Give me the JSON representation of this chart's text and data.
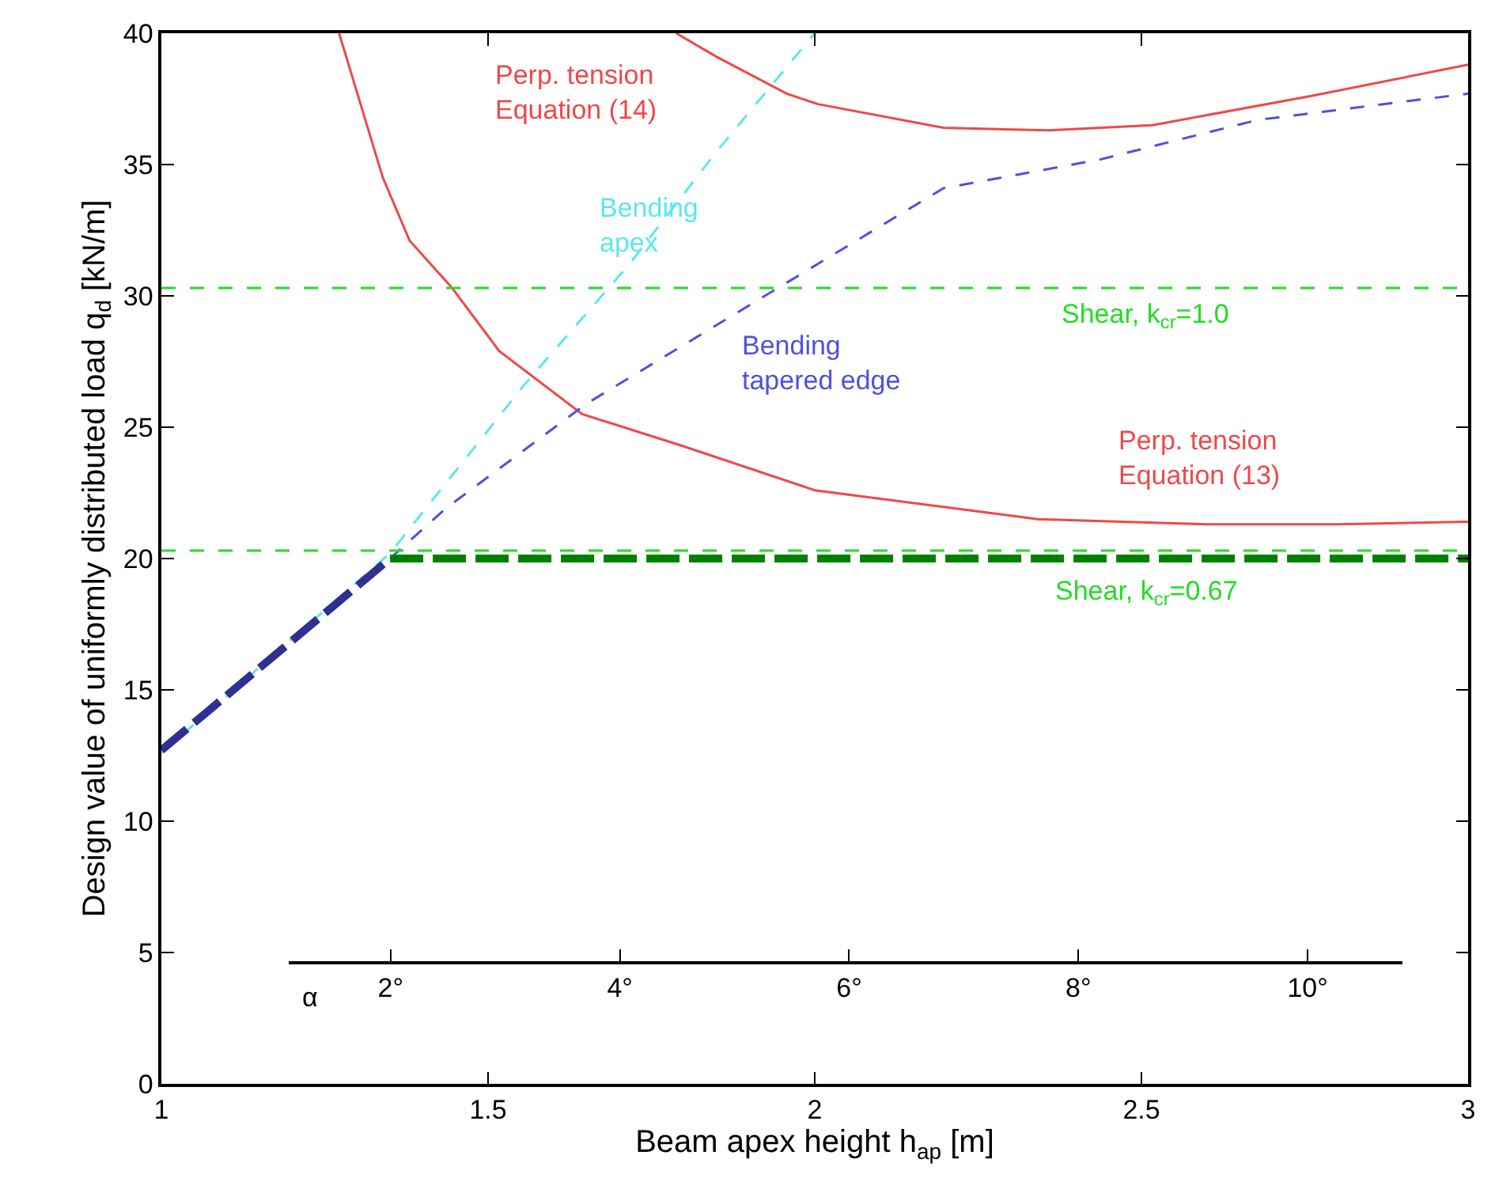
{
  "chart_data": {
    "type": "line",
    "xlabel": "Beam apex height h$_{ap}$ [m]",
    "ylabel": "Design value of uniformly distributed load q$_{d}$ [kN/m]",
    "xlim": [
      1,
      3
    ],
    "xticks": [
      1,
      1.5,
      2,
      2.5,
      3
    ],
    "ylim": [
      0,
      40
    ],
    "yticks": [
      0,
      5,
      10,
      15,
      20,
      25,
      30,
      35,
      40
    ],
    "x2label": "α",
    "x2lim": [
      0,
      11.4
    ],
    "x2ticks": [
      {
        "value": 2,
        "label": "2°"
      },
      {
        "value": 4,
        "label": "4°"
      },
      {
        "value": 6,
        "label": "6°"
      },
      {
        "value": 8,
        "label": "8°"
      },
      {
        "value": 10,
        "label": "10°"
      }
    ],
    "grid": false,
    "legend": false,
    "marker": "none",
    "series": [
      {
        "name": "Perp. tension\nEquation (14)",
        "color": "#f04848",
        "line_style": "solid",
        "x": [
          1.788,
          1.85,
          1.957,
          2.005,
          2.197,
          2.358,
          2.517,
          2.757,
          3.0
        ],
        "values": [
          40,
          39.1,
          37.7,
          37.3,
          36.4,
          36.3,
          36.5,
          37.6,
          38.8
        ]
      },
      {
        "name": "Perp. tension\nEquation (13)",
        "color": "#f04848",
        "line_style": "solid",
        "x": [
          1.272,
          1.339,
          1.38,
          1.445,
          1.517,
          1.644,
          1.796,
          2.0,
          2.341,
          2.6,
          2.8,
          3.0
        ],
        "values": [
          40,
          34.5,
          32.1,
          30.3,
          27.9,
          25.5,
          24.3,
          22.6,
          21.5,
          21.3,
          21.3,
          21.4
        ]
      },
      {
        "name": "Bending\napex",
        "color": "#5ee6f0",
        "line_style": "dashed",
        "x": [
          1.0,
          1.35,
          1.555,
          1.716,
          1.85,
          2.0
        ],
        "values": [
          12.6,
          20.2,
          26.6,
          31.2,
          35.5,
          40
        ]
      },
      {
        "name": "Bending\ntapered edge",
        "color": "#5050e0",
        "line_style": "dashed",
        "x": [
          1.35,
          1.435,
          1.651,
          1.957,
          2.197,
          2.438,
          2.678,
          3.0
        ],
        "values": [
          20.0,
          21.9,
          25.9,
          30.5,
          34.1,
          35.2,
          36.7,
          37.7
        ]
      },
      {
        "color": "#2e3192",
        "line_style": "dashed",
        "x": [
          1.0,
          1.35
        ],
        "values": [
          12.7,
          20.0
        ]
      },
      {
        "color": "#008000",
        "line_style": "dashed",
        "x": [
          1.35,
          3.0
        ],
        "values": [
          20.0,
          20.0
        ]
      },
      {
        "name": "Shear, k$_{cr}$=1.0",
        "color": "#22dd22",
        "line_style": "dashed",
        "x": [
          1.0,
          3.0
        ],
        "values": [
          30.3,
          30.3
        ]
      },
      {
        "name": "Shear, k$_{cr}$=0.67",
        "color": "#22dd22",
        "line_style": "dashed",
        "x": [
          1.0,
          3.0
        ],
        "values": [
          20.3,
          20.3
        ]
      }
    ]
  }
}
